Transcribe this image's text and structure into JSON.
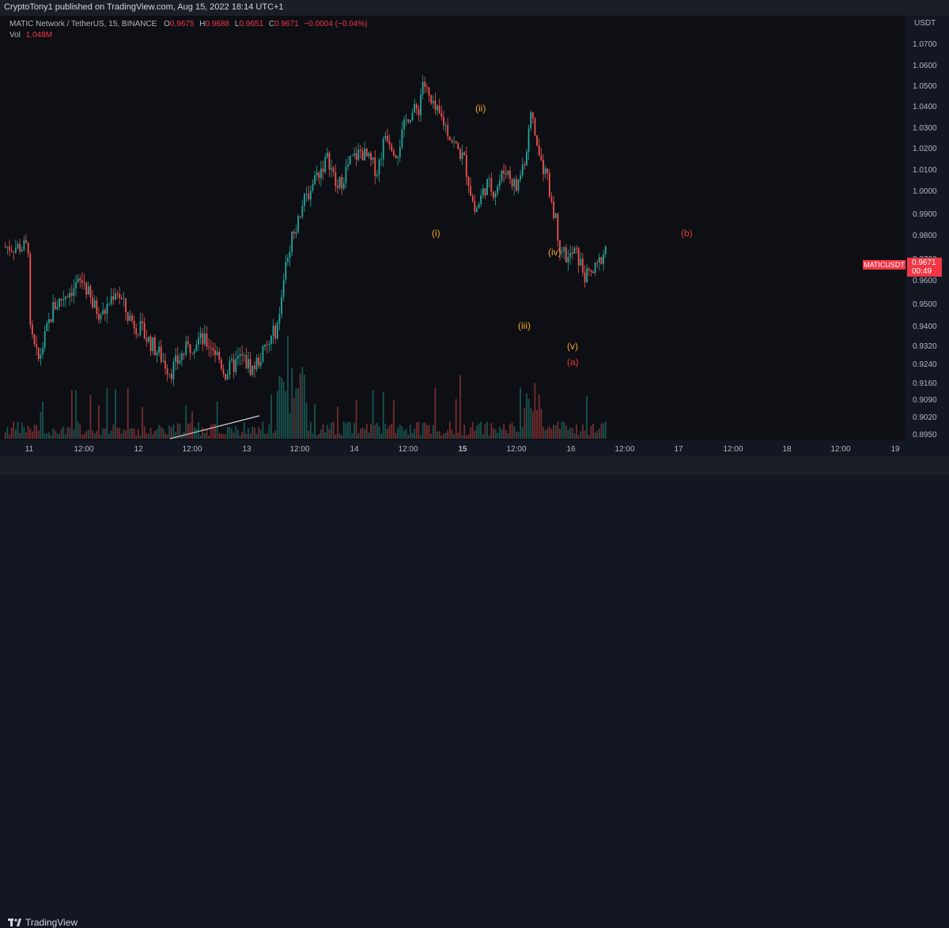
{
  "header": {
    "published": "CryptoTony1 published on TradingView.com, Aug 15, 2022 18:14 UTC+1"
  },
  "legend": {
    "symbol": "MATIC Network / TetherUS, 15, BINANCE",
    "o_label": "O",
    "o": "0.9675",
    "h_label": "H",
    "h": "0.9688",
    "l_label": "L",
    "l": "0.9651",
    "c_label": "C",
    "c": "0.9671",
    "change": "−0.0004 (−0.04%)",
    "vol_label": "Vol",
    "vol": "1.048M"
  },
  "price_axis": {
    "currency": "USDT",
    "ticks": [
      "1.0700",
      "1.0600",
      "1.0500",
      "1.0400",
      "1.0300",
      "1.0200",
      "1.0100",
      "1.0000",
      "0.9900",
      "0.9800",
      "0.9700",
      "0.9600",
      "0.9500",
      "0.9400",
      "0.9320",
      "0.9240",
      "0.9160",
      "0.9090",
      "0.9020",
      "0.8950"
    ],
    "last_price": "0.9671",
    "countdown": "00:49",
    "symbol_tag": "MATICUSDT"
  },
  "time_axis": {
    "ticks": [
      "11",
      "12:00",
      "12",
      "12:00",
      "13",
      "12:00",
      "14",
      "12:00",
      "15",
      "12:00",
      "16",
      "12:00",
      "17",
      "12:00",
      "18",
      "12:00",
      "19"
    ]
  },
  "annotations": {
    "wave_i": "(i)",
    "wave_ii": "(ii)",
    "wave_iii": "(iii)",
    "wave_iv": "(iv)",
    "wave_v": "(v)",
    "wave_a": "(a)",
    "wave_b": "(b)"
  },
  "footer": {
    "brand": "TradingView"
  },
  "colors": {
    "up": "#26a69a",
    "down": "#ef5350",
    "wave_orange": "#f5a623",
    "wave_red": "#e53935",
    "background": "#0d0f14"
  },
  "chart_data": {
    "type": "candlestick",
    "x_unit": "days since Aug 11 00:00",
    "y_unit": "USDT",
    "ylim": [
      0.895,
      1.07
    ],
    "xlim": [
      0,
      8
    ],
    "path": [
      [
        0,
        0.932
      ],
      [
        0.08,
        0.918
      ],
      [
        0.22,
        0.941
      ],
      [
        0.35,
        0.948
      ],
      [
        0.5,
        0.953
      ],
      [
        0.58,
        0.942
      ],
      [
        0.68,
        0.938
      ],
      [
        0.8,
        0.95
      ],
      [
        0.9,
        0.938
      ],
      [
        1.0,
        0.933
      ],
      [
        1.12,
        0.926
      ],
      [
        1.2,
        0.921
      ],
      [
        1.3,
        0.914
      ],
      [
        1.42,
        0.922
      ],
      [
        1.55,
        0.928
      ],
      [
        1.68,
        0.925
      ],
      [
        1.75,
        0.919
      ],
      [
        1.8,
        0.913
      ],
      [
        1.95,
        0.92
      ],
      [
        2.05,
        0.915
      ],
      [
        2.2,
        0.925
      ],
      [
        2.3,
        0.936
      ],
      [
        2.35,
        0.96
      ],
      [
        2.4,
        0.97
      ],
      [
        2.5,
        0.985
      ],
      [
        2.62,
        0.998
      ],
      [
        2.75,
        1.008
      ],
      [
        2.83,
        0.993
      ],
      [
        2.95,
        1.006
      ],
      [
        3.05,
        1.011
      ],
      [
        3.2,
        1.002
      ],
      [
        3.28,
        1.02
      ],
      [
        3.38,
        1.01
      ],
      [
        3.48,
        1.028
      ],
      [
        3.58,
        1.031
      ],
      [
        3.62,
        1.045
      ],
      [
        3.7,
        1.032
      ],
      [
        3.8,
        1.026
      ],
      [
        3.9,
        1.015
      ],
      [
        4.0,
        1.007
      ],
      [
        4.05,
        0.995
      ],
      [
        4.1,
        0.983
      ],
      [
        4.2,
        0.996
      ],
      [
        4.28,
        0.993
      ],
      [
        4.38,
        1.003
      ],
      [
        4.48,
        0.994
      ],
      [
        4.58,
        1.012
      ],
      [
        4.62,
        1.03
      ],
      [
        4.68,
        1.01
      ],
      [
        4.75,
        1.0
      ],
      [
        4.82,
        0.985
      ],
      [
        4.88,
        0.969
      ],
      [
        4.95,
        0.962
      ],
      [
        5.02,
        0.966
      ],
      [
        5.12,
        0.954
      ],
      [
        5.22,
        0.958
      ],
      [
        5.3,
        0.968
      ]
    ],
    "volume_bars": 290,
    "volume_max": "1.048M"
  }
}
